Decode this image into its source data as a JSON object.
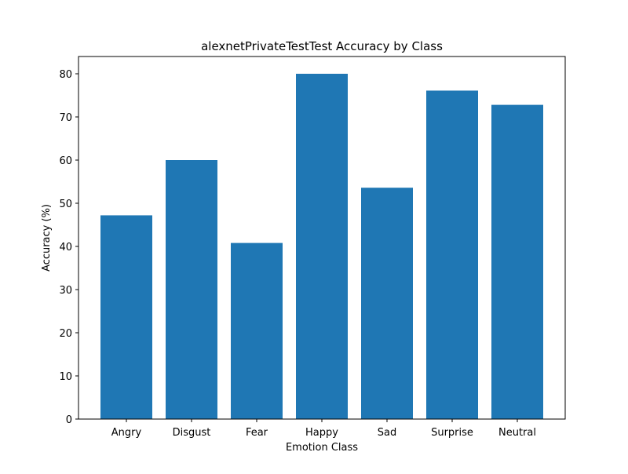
{
  "chart_data": {
    "type": "bar",
    "title": "alexnetPrivateTestTest Accuracy by Class",
    "xlabel": "Emotion Class",
    "ylabel": "Accuracy (%)",
    "categories": [
      "Angry",
      "Disgust",
      "Fear",
      "Happy",
      "Sad",
      "Surprise",
      "Neutral"
    ],
    "values": [
      47.2,
      60.0,
      40.8,
      80.0,
      53.6,
      76.1,
      72.8
    ],
    "ylim": [
      0,
      84
    ],
    "yticks": [
      0,
      10,
      20,
      30,
      40,
      50,
      60,
      70,
      80
    ],
    "bar_color": "#1f77b4",
    "grid": false,
    "legend": "none"
  }
}
